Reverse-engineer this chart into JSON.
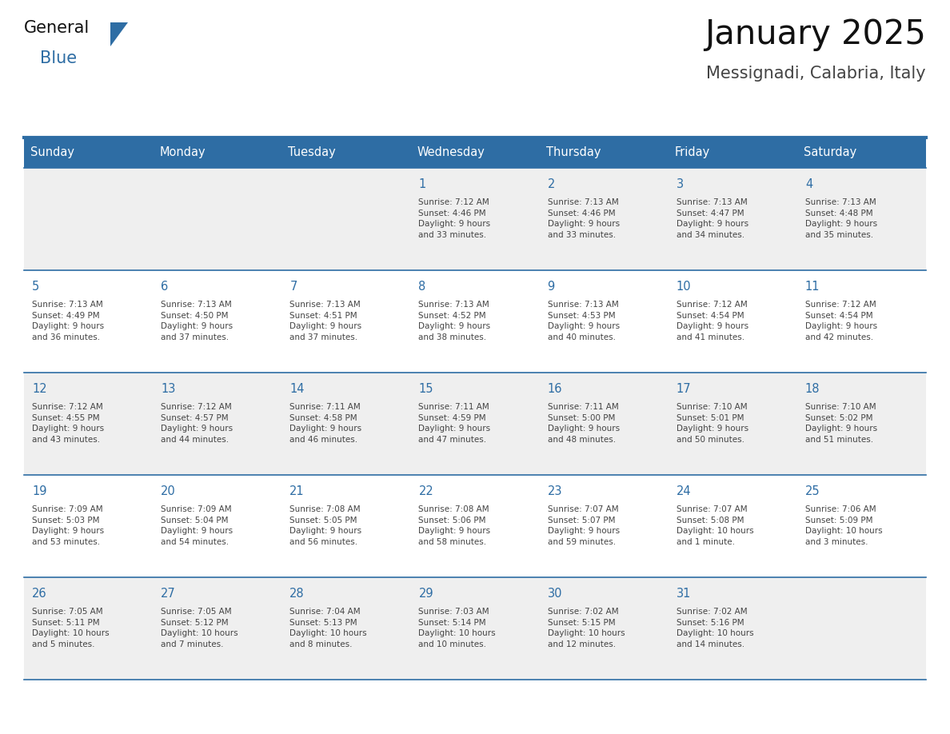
{
  "title": "January 2025",
  "subtitle": "Messignadi, Calabria, Italy",
  "header_bg": "#2E6DA4",
  "header_text_color": "#FFFFFF",
  "cell_bg_odd": "#EFEFEF",
  "cell_bg_even": "#FFFFFF",
  "day_number_color": "#2E6DA4",
  "cell_text_color": "#444444",
  "line_color": "#2E6DA4",
  "days_of_week": [
    "Sunday",
    "Monday",
    "Tuesday",
    "Wednesday",
    "Thursday",
    "Friday",
    "Saturday"
  ],
  "calendar": [
    [
      {
        "day": "",
        "info": ""
      },
      {
        "day": "",
        "info": ""
      },
      {
        "day": "",
        "info": ""
      },
      {
        "day": "1",
        "info": "Sunrise: 7:12 AM\nSunset: 4:46 PM\nDaylight: 9 hours\nand 33 minutes."
      },
      {
        "day": "2",
        "info": "Sunrise: 7:13 AM\nSunset: 4:46 PM\nDaylight: 9 hours\nand 33 minutes."
      },
      {
        "day": "3",
        "info": "Sunrise: 7:13 AM\nSunset: 4:47 PM\nDaylight: 9 hours\nand 34 minutes."
      },
      {
        "day": "4",
        "info": "Sunrise: 7:13 AM\nSunset: 4:48 PM\nDaylight: 9 hours\nand 35 minutes."
      }
    ],
    [
      {
        "day": "5",
        "info": "Sunrise: 7:13 AM\nSunset: 4:49 PM\nDaylight: 9 hours\nand 36 minutes."
      },
      {
        "day": "6",
        "info": "Sunrise: 7:13 AM\nSunset: 4:50 PM\nDaylight: 9 hours\nand 37 minutes."
      },
      {
        "day": "7",
        "info": "Sunrise: 7:13 AM\nSunset: 4:51 PM\nDaylight: 9 hours\nand 37 minutes."
      },
      {
        "day": "8",
        "info": "Sunrise: 7:13 AM\nSunset: 4:52 PM\nDaylight: 9 hours\nand 38 minutes."
      },
      {
        "day": "9",
        "info": "Sunrise: 7:13 AM\nSunset: 4:53 PM\nDaylight: 9 hours\nand 40 minutes."
      },
      {
        "day": "10",
        "info": "Sunrise: 7:12 AM\nSunset: 4:54 PM\nDaylight: 9 hours\nand 41 minutes."
      },
      {
        "day": "11",
        "info": "Sunrise: 7:12 AM\nSunset: 4:54 PM\nDaylight: 9 hours\nand 42 minutes."
      }
    ],
    [
      {
        "day": "12",
        "info": "Sunrise: 7:12 AM\nSunset: 4:55 PM\nDaylight: 9 hours\nand 43 minutes."
      },
      {
        "day": "13",
        "info": "Sunrise: 7:12 AM\nSunset: 4:57 PM\nDaylight: 9 hours\nand 44 minutes."
      },
      {
        "day": "14",
        "info": "Sunrise: 7:11 AM\nSunset: 4:58 PM\nDaylight: 9 hours\nand 46 minutes."
      },
      {
        "day": "15",
        "info": "Sunrise: 7:11 AM\nSunset: 4:59 PM\nDaylight: 9 hours\nand 47 minutes."
      },
      {
        "day": "16",
        "info": "Sunrise: 7:11 AM\nSunset: 5:00 PM\nDaylight: 9 hours\nand 48 minutes."
      },
      {
        "day": "17",
        "info": "Sunrise: 7:10 AM\nSunset: 5:01 PM\nDaylight: 9 hours\nand 50 minutes."
      },
      {
        "day": "18",
        "info": "Sunrise: 7:10 AM\nSunset: 5:02 PM\nDaylight: 9 hours\nand 51 minutes."
      }
    ],
    [
      {
        "day": "19",
        "info": "Sunrise: 7:09 AM\nSunset: 5:03 PM\nDaylight: 9 hours\nand 53 minutes."
      },
      {
        "day": "20",
        "info": "Sunrise: 7:09 AM\nSunset: 5:04 PM\nDaylight: 9 hours\nand 54 minutes."
      },
      {
        "day": "21",
        "info": "Sunrise: 7:08 AM\nSunset: 5:05 PM\nDaylight: 9 hours\nand 56 minutes."
      },
      {
        "day": "22",
        "info": "Sunrise: 7:08 AM\nSunset: 5:06 PM\nDaylight: 9 hours\nand 58 minutes."
      },
      {
        "day": "23",
        "info": "Sunrise: 7:07 AM\nSunset: 5:07 PM\nDaylight: 9 hours\nand 59 minutes."
      },
      {
        "day": "24",
        "info": "Sunrise: 7:07 AM\nSunset: 5:08 PM\nDaylight: 10 hours\nand 1 minute."
      },
      {
        "day": "25",
        "info": "Sunrise: 7:06 AM\nSunset: 5:09 PM\nDaylight: 10 hours\nand 3 minutes."
      }
    ],
    [
      {
        "day": "26",
        "info": "Sunrise: 7:05 AM\nSunset: 5:11 PM\nDaylight: 10 hours\nand 5 minutes."
      },
      {
        "day": "27",
        "info": "Sunrise: 7:05 AM\nSunset: 5:12 PM\nDaylight: 10 hours\nand 7 minutes."
      },
      {
        "day": "28",
        "info": "Sunrise: 7:04 AM\nSunset: 5:13 PM\nDaylight: 10 hours\nand 8 minutes."
      },
      {
        "day": "29",
        "info": "Sunrise: 7:03 AM\nSunset: 5:14 PM\nDaylight: 10 hours\nand 10 minutes."
      },
      {
        "day": "30",
        "info": "Sunrise: 7:02 AM\nSunset: 5:15 PM\nDaylight: 10 hours\nand 12 minutes."
      },
      {
        "day": "31",
        "info": "Sunrise: 7:02 AM\nSunset: 5:16 PM\nDaylight: 10 hours\nand 14 minutes."
      },
      {
        "day": "",
        "info": ""
      }
    ]
  ],
  "logo_general_color": "#111111",
  "logo_blue_color": "#2E6DA4",
  "logo_triangle_color": "#2E6DA4"
}
